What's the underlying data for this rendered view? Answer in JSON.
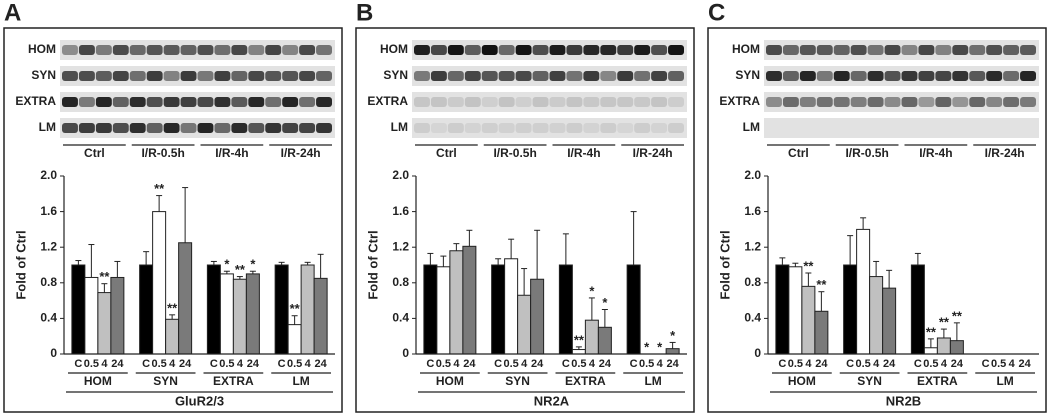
{
  "chart_data": [
    {
      "type": "bar",
      "panel": "A",
      "blot_rows": [
        "HOM",
        "SYN",
        "EXTRA",
        "LM"
      ],
      "blot_groups": [
        "Ctrl",
        "I/R-0.5h",
        "I/R-4h",
        "I/R-24h"
      ],
      "ylabel": "Fold of Ctrl",
      "xlabel": "GluR2/3",
      "categories": [
        "HOM",
        "SYN",
        "EXTRA",
        "LM"
      ],
      "ylim": [
        0,
        2
      ],
      "yticks": [
        0,
        0.4,
        0.8,
        1.2,
        1.6,
        {
          "value": 2,
          "label": "2.0"
        }
      ],
      "series": [
        {
          "name": "C",
          "color": "#000000",
          "values": [
            1.0,
            1.0,
            1.0,
            1.0
          ],
          "errors": [
            0.05,
            0.15,
            0.04,
            0.03
          ],
          "significance": [
            null,
            null,
            null,
            null
          ]
        },
        {
          "name": "0.5",
          "color": "#ffffff",
          "values": [
            0.86,
            1.6,
            0.9,
            0.33
          ],
          "errors": [
            0.37,
            0.18,
            0.03,
            0.1
          ],
          "significance": [
            null,
            "**",
            "*",
            "**"
          ]
        },
        {
          "name": "4",
          "color": "#c0c0c0",
          "values": [
            0.69,
            0.39,
            0.84,
            1.0
          ],
          "errors": [
            0.1,
            0.05,
            0.03,
            0.03
          ],
          "significance": [
            "**",
            "**",
            "**",
            null
          ]
        },
        {
          "name": "24",
          "color": "#7a7a7a",
          "values": [
            0.86,
            1.25,
            0.9,
            0.85
          ],
          "errors": [
            0.18,
            0.62,
            0.03,
            0.27
          ],
          "significance": [
            null,
            null,
            "*",
            null
          ]
        }
      ]
    },
    {
      "type": "bar",
      "panel": "B",
      "blot_rows": [
        "HOM",
        "SYN",
        "EXTRA",
        "LM"
      ],
      "blot_groups": [
        "Ctrl",
        "I/R-0.5h",
        "I/R-4h",
        "I/R-24h"
      ],
      "ylabel": "Fold of Ctrl",
      "xlabel": "NR2A",
      "categories": [
        "HOM",
        "SYN",
        "EXTRA",
        "LM"
      ],
      "ylim": [
        0,
        2
      ],
      "yticks": [
        0,
        0.4,
        0.8,
        1.2,
        1.6,
        {
          "value": 2,
          "label": "2.0"
        }
      ],
      "series": [
        {
          "name": "C",
          "color": "#000000",
          "values": [
            1.0,
            1.0,
            1.0,
            1.0
          ],
          "errors": [
            0.13,
            0.07,
            0.35,
            0.6
          ],
          "significance": [
            null,
            null,
            null,
            null
          ]
        },
        {
          "name": "0.5",
          "color": "#ffffff",
          "values": [
            0.98,
            1.07,
            0.05,
            0
          ],
          "errors": [
            0.12,
            0.22,
            0.03,
            null
          ],
          "significance": [
            null,
            null,
            "**",
            "*"
          ]
        },
        {
          "name": "4",
          "color": "#c0c0c0",
          "values": [
            1.16,
            0.66,
            0.38,
            0
          ],
          "errors": [
            0.08,
            0.3,
            0.25,
            null
          ],
          "significance": [
            null,
            null,
            "*",
            "*"
          ]
        },
        {
          "name": "24",
          "color": "#7a7a7a",
          "values": [
            1.21,
            0.84,
            0.3,
            0.06
          ],
          "errors": [
            0.18,
            0.55,
            0.2,
            0.07
          ],
          "significance": [
            null,
            null,
            "*",
            "*"
          ]
        }
      ]
    },
    {
      "type": "bar",
      "panel": "C",
      "blot_rows": [
        "HOM",
        "SYN",
        "EXTRA",
        "LM"
      ],
      "blot_groups": [
        "Ctrl",
        "I/R-0.5h",
        "I/R-4h",
        "I/R-24h"
      ],
      "ylabel": "Fold of Ctrl",
      "xlabel": "NR2B",
      "categories": [
        "HOM",
        "SYN",
        "EXTRA",
        "LM"
      ],
      "ylim": [
        0,
        2
      ],
      "yticks": [
        0,
        0.4,
        0.8,
        1.2,
        1.6,
        {
          "value": 2,
          "label": "2.0"
        }
      ],
      "series": [
        {
          "name": "C",
          "color": "#000000",
          "values": [
            1.0,
            1.0,
            1.0,
            0
          ],
          "errors": [
            0.08,
            0.33,
            0.13,
            null
          ],
          "significance": [
            null,
            null,
            null,
            null
          ]
        },
        {
          "name": "0.5",
          "color": "#ffffff",
          "values": [
            0.98,
            1.4,
            0.07,
            0
          ],
          "errors": [
            0.04,
            0.13,
            0.1,
            null
          ],
          "significance": [
            null,
            null,
            "**",
            null
          ]
        },
        {
          "name": "4",
          "color": "#c0c0c0",
          "values": [
            0.76,
            0.87,
            0.18,
            0
          ],
          "errors": [
            0.15,
            0.17,
            0.1,
            null
          ],
          "significance": [
            "**",
            null,
            "**",
            null
          ]
        },
        {
          "name": "24",
          "color": "#7a7a7a",
          "values": [
            0.48,
            0.74,
            0.15,
            0
          ],
          "errors": [
            0.22,
            0.2,
            0.2,
            null
          ],
          "significance": [
            "**",
            null,
            "**",
            null
          ]
        }
      ]
    }
  ]
}
